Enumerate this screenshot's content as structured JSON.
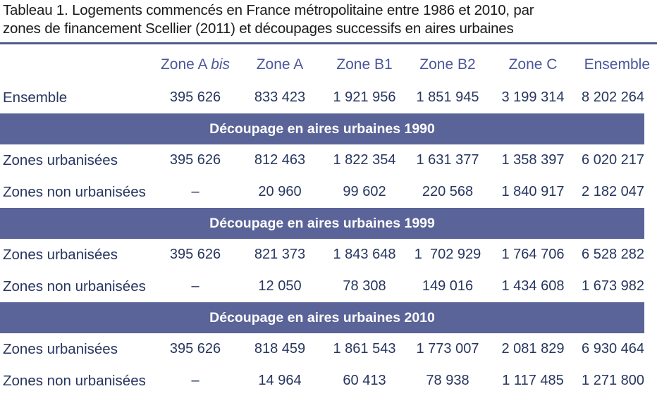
{
  "title": {
    "line1": "Tableau 1. Logements commencés en France métropolitaine entre 1986 et 2010, par",
    "line2": "zones de financement Scellier (2011) et découpages successifs en aires urbaines"
  },
  "columns": {
    "zone_a_bis_prefix": "Zone A ",
    "zone_a_bis_italic": "bis",
    "zone_a": "Zone A",
    "zone_b1": "Zone B1",
    "zone_b2": "Zone B2",
    "zone_c": "Zone C",
    "ensemble": "Ensemble"
  },
  "total_row": {
    "label": "Ensemble",
    "values": [
      "395 626",
      "833 423",
      "1 921 956",
      "1 851 945",
      "3 199 314",
      "8 202 264"
    ]
  },
  "sections": [
    {
      "heading": "Découpage en aires urbaines 1990",
      "rows": [
        {
          "label": "Zones urbanisées",
          "values": [
            "395 626",
            "812 463",
            "1 822 354",
            "1 631 377",
            "1 358 397",
            "6 020 217"
          ]
        },
        {
          "label": "Zones non urbanisées",
          "values": [
            "–",
            "20 960",
            "99 602",
            "220 568",
            "1 840 917",
            "2 182 047"
          ]
        }
      ]
    },
    {
      "heading": "Découpage en aires urbaines 1999",
      "rows": [
        {
          "label": "Zones urbanisées",
          "values": [
            "395 626",
            "821 373",
            "1 843 648",
            "1  702 929",
            "1 764 706",
            "6 528 282"
          ]
        },
        {
          "label": "Zones non urbanisées",
          "values": [
            "–",
            "12 050",
            "78 308",
            "149 016",
            "1 434 608",
            "1 673 982"
          ]
        }
      ]
    },
    {
      "heading": "Découpage en aires urbaines 2010",
      "rows": [
        {
          "label": "Zones urbanisées",
          "values": [
            "395 626",
            "818 459",
            "1 861 543",
            "1 773 007",
            "2 081 829",
            "6 930 464"
          ]
        },
        {
          "label": "Zones non urbanisées",
          "values": [
            "–",
            "14 964",
            "60 413",
            "78 938",
            "1 117 485",
            "1 271 800"
          ]
        }
      ]
    }
  ],
  "colors": {
    "band": "#5a6498",
    "header_text": "#4b579a",
    "rule": "#4f5a8c"
  }
}
